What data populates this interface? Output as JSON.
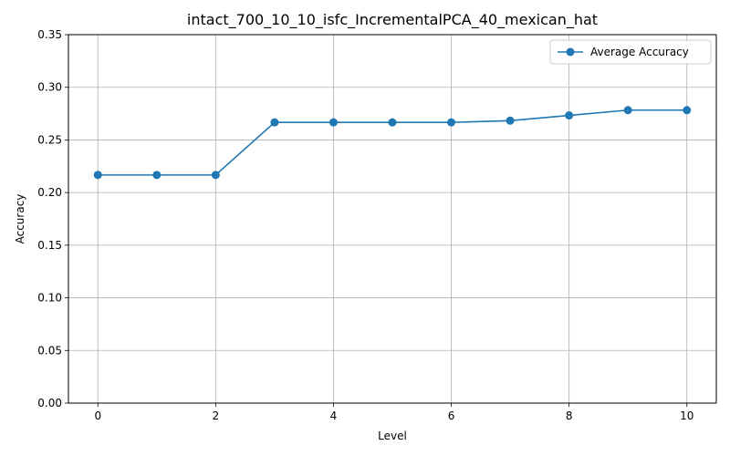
{
  "chart_data": {
    "type": "line",
    "title": "intact_700_10_10_isfc_IncrementalPCA_40_mexican_hat",
    "xlabel": "Level",
    "ylabel": "Accuracy",
    "x": [
      0,
      1,
      2,
      3,
      4,
      5,
      6,
      7,
      8,
      9,
      10
    ],
    "series": [
      {
        "name": "Average Accuracy",
        "color": "#1f77b4",
        "marker": "circle",
        "values": [
          0.2167,
          0.2167,
          0.2167,
          0.2667,
          0.2667,
          0.2667,
          0.2667,
          0.2683,
          0.2733,
          0.2783,
          0.2783
        ]
      }
    ],
    "xlim": [
      -0.5,
      10.5
    ],
    "ylim": [
      0,
      0.35
    ],
    "xticks": [
      0,
      2,
      4,
      6,
      8,
      10
    ],
    "xtick_labels": [
      "0",
      "2",
      "4",
      "6",
      "8",
      "10"
    ],
    "yticks": [
      0,
      0.05,
      0.1,
      0.15,
      0.2,
      0.25,
      0.3,
      0.35
    ],
    "ytick_labels": [
      "0.00",
      "0.05",
      "0.10",
      "0.15",
      "0.20",
      "0.25",
      "0.30",
      "0.35"
    ],
    "grid": true,
    "legend_position": "upper right"
  }
}
